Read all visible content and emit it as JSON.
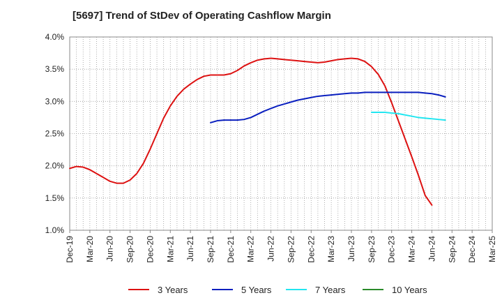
{
  "chart_data": {
    "type": "line",
    "title": "[5697]  Trend of StDev of Operating Cashflow Margin",
    "xlabel": "",
    "ylabel": "",
    "x_tick_labels": [
      "Dec-19",
      "Mar-20",
      "Jun-20",
      "Sep-20",
      "Dec-20",
      "Mar-21",
      "Jun-21",
      "Sep-21",
      "Dec-21",
      "Mar-22",
      "Jun-22",
      "Sep-22",
      "Dec-22",
      "Mar-23",
      "Jun-23",
      "Sep-23",
      "Dec-23",
      "Mar-24",
      "Jun-24",
      "Sep-24",
      "Dec-24",
      "Mar-25"
    ],
    "y_tick_labels": [
      "1.0%",
      "1.5%",
      "2.0%",
      "2.5%",
      "3.0%",
      "3.5%",
      "4.0%"
    ],
    "ylim": [
      1.0,
      4.0
    ],
    "grid": true,
    "legend_position": "bottom",
    "series": [
      {
        "name": "3 Years",
        "color": "#dd1111",
        "start_index": 0,
        "values": [
          1.96,
          1.99,
          1.98,
          1.94,
          1.88,
          1.82,
          1.76,
          1.73,
          1.73,
          1.78,
          1.88,
          2.04,
          2.26,
          2.5,
          2.74,
          2.93,
          3.08,
          3.19,
          3.27,
          3.34,
          3.39,
          3.41,
          3.41,
          3.41,
          3.43,
          3.48,
          3.55,
          3.6,
          3.64,
          3.66,
          3.67,
          3.66,
          3.65,
          3.64,
          3.63,
          3.62,
          3.61,
          3.6,
          3.61,
          3.63,
          3.65,
          3.66,
          3.67,
          3.66,
          3.62,
          3.54,
          3.42,
          3.24,
          2.98,
          2.7,
          2.42,
          2.14,
          1.85,
          1.54,
          1.39
        ]
      },
      {
        "name": "5 Years",
        "color": "#0a1fbf",
        "start_index": 21,
        "values": [
          2.67,
          2.7,
          2.71,
          2.71,
          2.71,
          2.72,
          2.75,
          2.8,
          2.85,
          2.89,
          2.93,
          2.96,
          2.99,
          3.02,
          3.04,
          3.06,
          3.08,
          3.09,
          3.1,
          3.11,
          3.12,
          3.13,
          3.13,
          3.14,
          3.14,
          3.14,
          3.14,
          3.14,
          3.14,
          3.14,
          3.14,
          3.14,
          3.13,
          3.12,
          3.1,
          3.07
        ]
      },
      {
        "name": "7 Years",
        "color": "#22e6f0",
        "start_index": 45,
        "values": [
          2.83,
          2.83,
          2.83,
          2.82,
          2.81,
          2.79,
          2.77,
          2.75,
          2.74,
          2.73,
          2.72,
          2.71
        ]
      },
      {
        "name": "10 Years",
        "color": "#2a8a2a",
        "start_index": 0,
        "values": []
      }
    ]
  }
}
